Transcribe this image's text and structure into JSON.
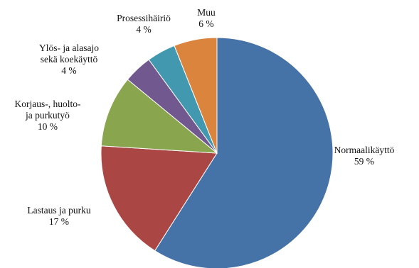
{
  "chart_data": {
    "type": "pie",
    "title": "",
    "slices": [
      {
        "name_lines": [
          "Normaalikäyttö"
        ],
        "value": 59,
        "value_label": "59 %",
        "color": "#4572a7"
      },
      {
        "name_lines": [
          "Lastaus ja purku"
        ],
        "value": 17,
        "value_label": "17 %",
        "color": "#aa4643"
      },
      {
        "name_lines": [
          "Korjaus-, huolto-",
          "ja purkutyö"
        ],
        "value": 10,
        "value_label": "10 %",
        "color": "#89a54e"
      },
      {
        "name_lines": [
          "Ylös- ja alasajo",
          "sekä koekäyttö"
        ],
        "value": 4,
        "value_label": "4 %",
        "color": "#71588f"
      },
      {
        "name_lines": [
          "Prosessihäiriö"
        ],
        "value": 4,
        "value_label": "4 %",
        "color": "#4198af"
      },
      {
        "name_lines": [
          "Muu"
        ],
        "value": 6,
        "value_label": "6 %",
        "color": "#db843d"
      }
    ],
    "start_angle": "12 o'clock",
    "direction": "clockwise",
    "legend": "none (data labels outside slices)"
  }
}
